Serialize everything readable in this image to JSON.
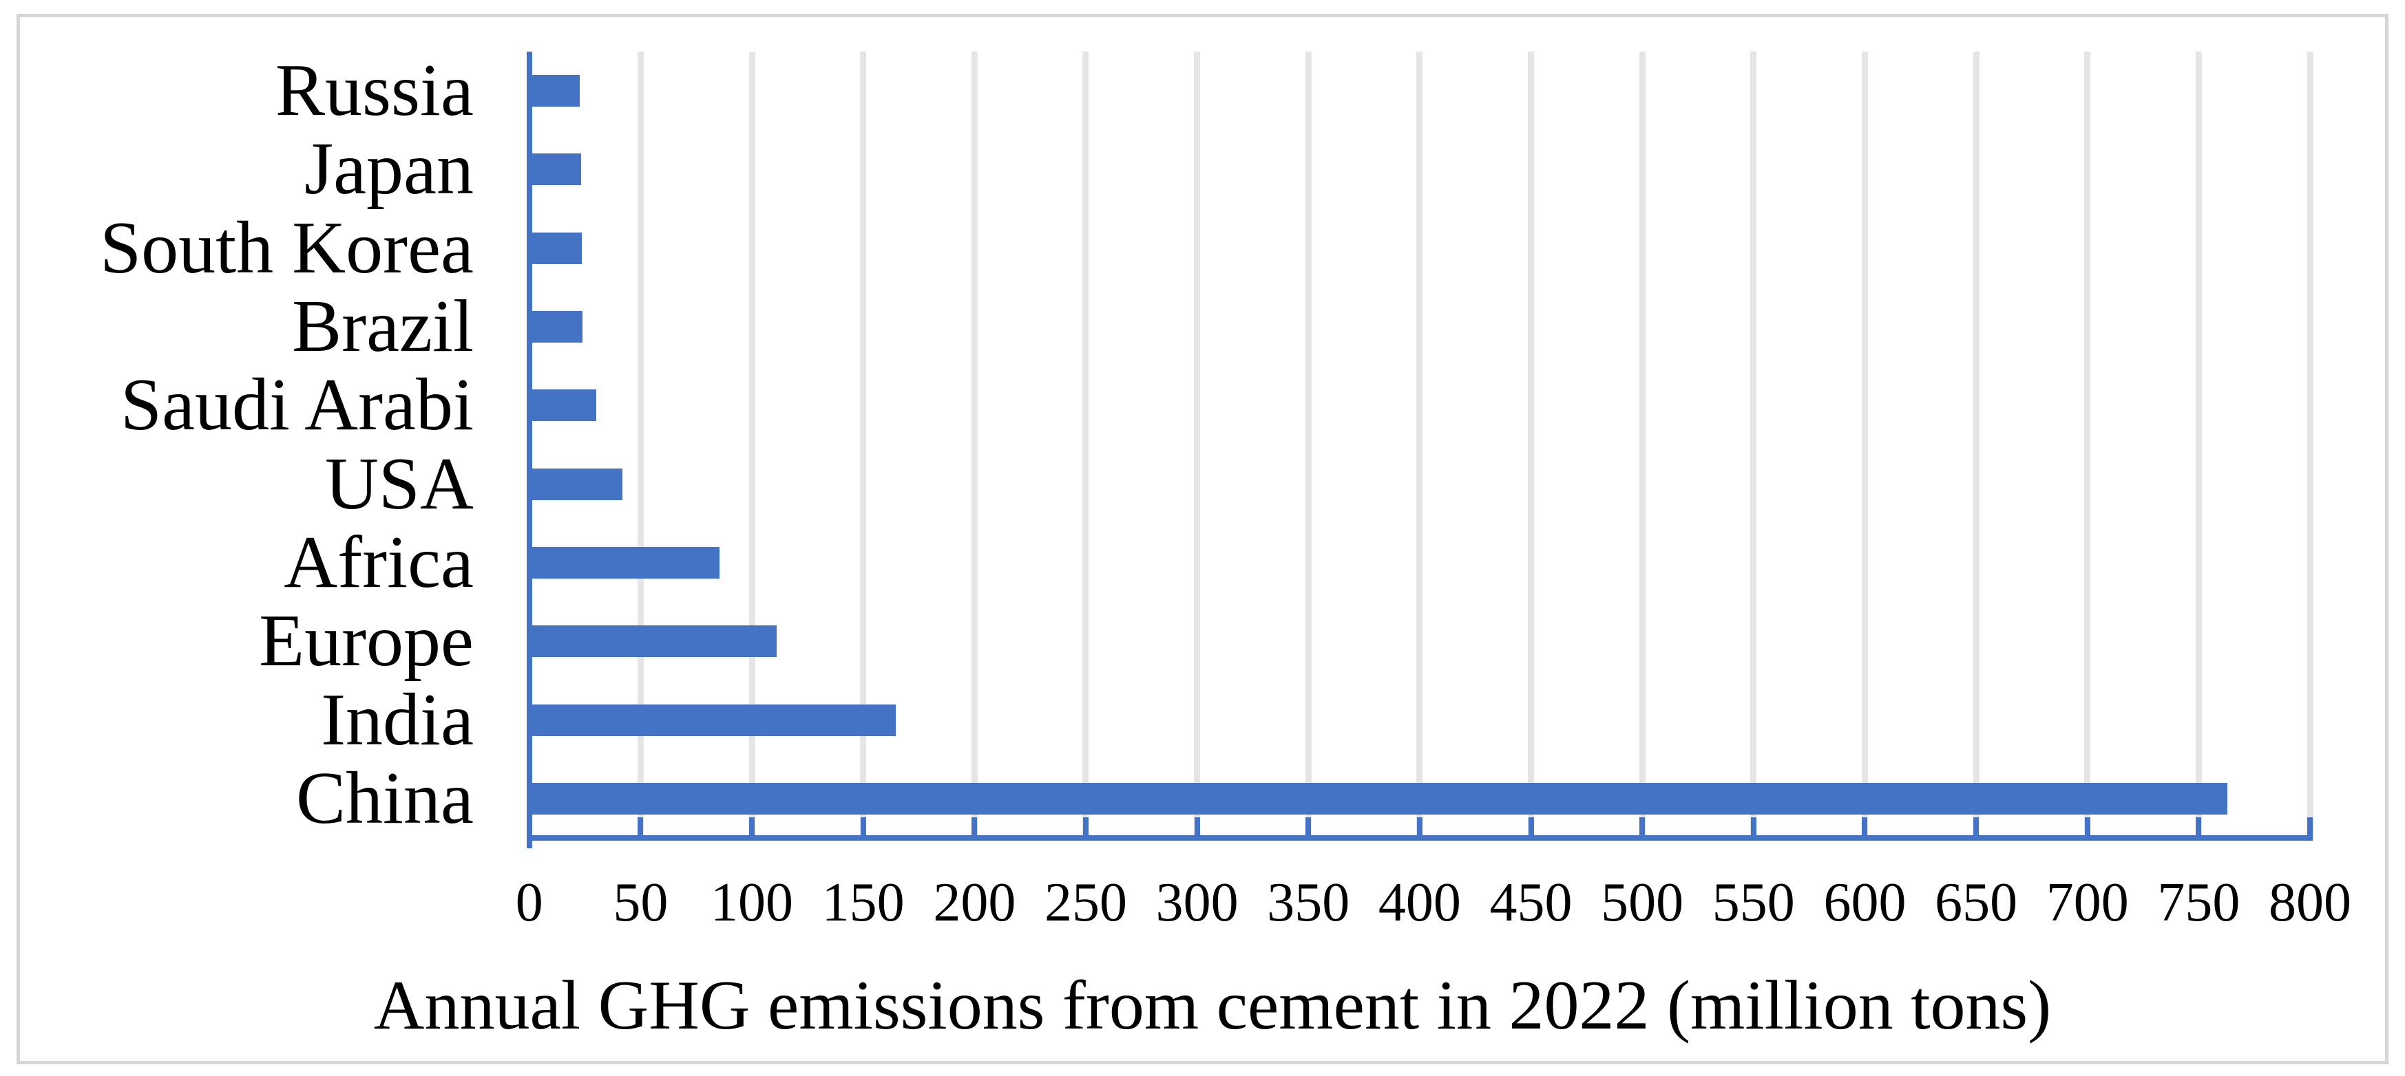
{
  "chart_data": {
    "type": "bar",
    "orientation": "horizontal",
    "title": "",
    "xlabel": "Annual GHG emissions from cement in 2022 (million tons)",
    "ylabel": "",
    "categories": [
      "Russia",
      "Japan",
      "South Korea",
      "Brazil",
      "Saudi Arabi",
      "USA",
      "Africa",
      "Europe",
      "India",
      "China"
    ],
    "values": [
      22.8,
      23.4,
      23.7,
      24.0,
      30.2,
      41.7,
      85.6,
      111.0,
      164.5,
      763.0
    ],
    "xlim": [
      0,
      800
    ],
    "x_tick_step": 50,
    "x_ticks": [
      0,
      50,
      100,
      150,
      200,
      250,
      300,
      350,
      400,
      450,
      500,
      550,
      600,
      650,
      700,
      750,
      800
    ],
    "grid": true,
    "gridlines": "vertical-major",
    "legend": "none",
    "bar_color": "#4472C4",
    "axis_color": "#4472C4",
    "gridline_color": "#E5E5E5",
    "frame_color": "#D6D6D6",
    "text_color": "#000000",
    "background_color": "#FFFFFF"
  }
}
